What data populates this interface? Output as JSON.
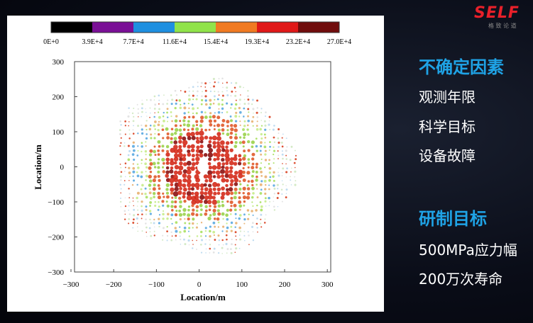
{
  "logo": {
    "brand": "SELF",
    "tagline": "格 致 论 道"
  },
  "figure": {
    "colorbar_labels": [
      "0E+0",
      "3.9E+4",
      "7.7E+4",
      "11.6E+4",
      "15.4E+4",
      "19.3E+4",
      "23.2E+4",
      "27.0E+4"
    ],
    "x_tick_labels": [
      "−300",
      "−200",
      "−100",
      "0",
      "100",
      "200",
      "300"
    ],
    "y_tick_labels": [
      "300",
      "200",
      "100",
      "0",
      "−100",
      "−200",
      "−300"
    ],
    "x_label": "Location/m",
    "y_label": "Location/m"
  },
  "sections": [
    {
      "heading": "不确定因素",
      "items": [
        "观测年限",
        "科学目标",
        "设备故障"
      ]
    },
    {
      "heading": "研制目标",
      "items": [
        "500MPa应力幅",
        "200万次寿命"
      ]
    }
  ]
}
